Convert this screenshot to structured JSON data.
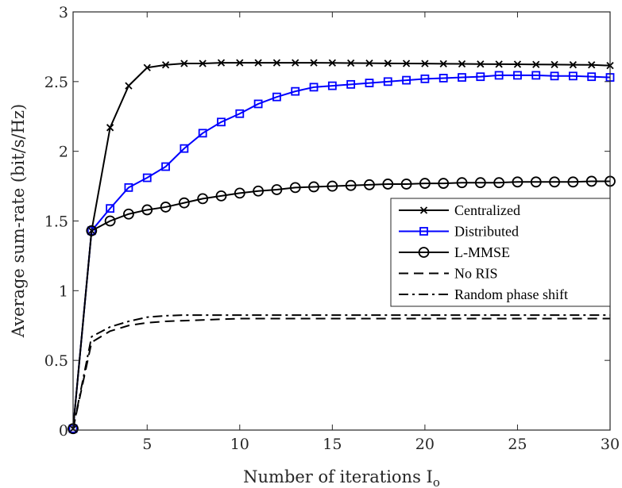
{
  "chart_data": {
    "type": "line",
    "title": "",
    "xlabel": "Number of iterations I",
    "xlabel_sub": "o",
    "ylabel": "Average sum-rate (bit/s/Hz)",
    "xlim": [
      1,
      30
    ],
    "ylim": [
      0,
      3
    ],
    "xticks": [
      5,
      10,
      15,
      20,
      25,
      30
    ],
    "yticks": [
      0,
      0.5,
      1,
      1.5,
      2,
      2.5,
      3
    ],
    "xtick_labels": [
      "5",
      "10",
      "15",
      "20",
      "25",
      "30"
    ],
    "ytick_labels": [
      "0",
      "0.5",
      "1",
      "1.5",
      "2",
      "2.5",
      "3"
    ],
    "grid": false,
    "legend_position": "center-right",
    "x": [
      1,
      2,
      3,
      4,
      5,
      6,
      7,
      8,
      9,
      10,
      11,
      12,
      13,
      14,
      15,
      16,
      17,
      18,
      19,
      20,
      21,
      22,
      23,
      24,
      25,
      26,
      27,
      28,
      29,
      30
    ],
    "series": [
      {
        "name": "Centralized",
        "color": "#000000",
        "marker": "x",
        "dash": "solid",
        "values": [
          0.01,
          1.43,
          2.17,
          2.47,
          2.6,
          2.62,
          2.63,
          2.63,
          2.635,
          2.635,
          2.635,
          2.635,
          2.635,
          2.635,
          2.634,
          2.633,
          2.632,
          2.631,
          2.63,
          2.629,
          2.628,
          2.627,
          2.626,
          2.625,
          2.624,
          2.623,
          2.622,
          2.621,
          2.62,
          2.615
        ]
      },
      {
        "name": "Distributed",
        "color": "#0000ff",
        "marker": "square",
        "dash": "solid",
        "values": [
          0.01,
          1.43,
          1.59,
          1.74,
          1.81,
          1.89,
          2.02,
          2.13,
          2.21,
          2.27,
          2.34,
          2.39,
          2.43,
          2.46,
          2.47,
          2.48,
          2.49,
          2.5,
          2.51,
          2.52,
          2.525,
          2.53,
          2.535,
          2.545,
          2.545,
          2.545,
          2.54,
          2.54,
          2.535,
          2.53
        ]
      },
      {
        "name": "L-MMSE",
        "color": "#000000",
        "marker": "circle",
        "dash": "solid",
        "values": [
          0.01,
          1.43,
          1.5,
          1.55,
          1.58,
          1.6,
          1.63,
          1.66,
          1.68,
          1.7,
          1.715,
          1.725,
          1.74,
          1.745,
          1.75,
          1.755,
          1.76,
          1.765,
          1.765,
          1.77,
          1.77,
          1.775,
          1.775,
          1.775,
          1.78,
          1.78,
          1.78,
          1.78,
          1.785,
          1.785
        ]
      },
      {
        "name": "No RIS",
        "color": "#000000",
        "marker": "none",
        "dash": "dashed",
        "values": [
          0.01,
          0.63,
          0.71,
          0.75,
          0.77,
          0.78,
          0.785,
          0.79,
          0.795,
          0.8,
          0.8,
          0.8,
          0.8,
          0.8,
          0.8,
          0.8,
          0.8,
          0.8,
          0.8,
          0.8,
          0.8,
          0.8,
          0.8,
          0.8,
          0.8,
          0.8,
          0.8,
          0.8,
          0.8,
          0.8
        ]
      },
      {
        "name": "Random phase shift",
        "color": "#000000",
        "marker": "none",
        "dash": "dashdot",
        "values": [
          0.01,
          0.67,
          0.74,
          0.78,
          0.81,
          0.82,
          0.825,
          0.825,
          0.825,
          0.825,
          0.825,
          0.825,
          0.825,
          0.825,
          0.825,
          0.825,
          0.825,
          0.825,
          0.825,
          0.825,
          0.825,
          0.825,
          0.825,
          0.825,
          0.825,
          0.825,
          0.825,
          0.825,
          0.825,
          0.825
        ]
      }
    ]
  }
}
